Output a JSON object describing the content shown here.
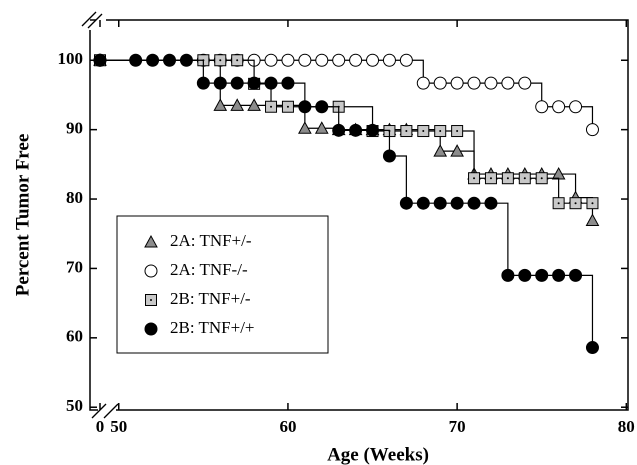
{
  "chart_data": {
    "type": "step",
    "xlabel": "Age (Weeks)",
    "ylabel": "Percent Tumor Free",
    "xlim": [
      48.3,
      80.1
    ],
    "ylim": [
      49.6,
      105.8
    ],
    "xticks": [
      0,
      50,
      60,
      70,
      80
    ],
    "yticks": [
      50,
      60,
      70,
      80,
      90,
      100
    ],
    "x_break": true,
    "y_break": true,
    "legend": "lower left",
    "series": [
      {
        "name": "2A: TNF+/-",
        "marker": "triangle",
        "color": "#8c8c8c",
        "x": [
          0,
          56,
          57,
          58,
          61,
          62,
          63,
          64,
          65,
          66,
          67,
          69,
          70,
          71,
          72,
          73,
          74,
          75,
          76,
          77,
          78
        ],
        "values": [
          100,
          93.5,
          93.5,
          93.5,
          90.2,
          90.2,
          90,
          90,
          90,
          90,
          90,
          86.9,
          86.9,
          83.6,
          83.6,
          83.6,
          83.6,
          83.6,
          83.6,
          80.2,
          76.9
        ]
      },
      {
        "name": "2A: TNF-/-",
        "marker": "circle",
        "color": "#ffffff",
        "x": [
          0,
          55,
          56,
          57,
          58,
          59,
          60,
          61,
          62,
          63,
          64,
          65,
          66,
          67,
          68,
          69,
          70,
          71,
          72,
          73,
          74,
          75,
          76,
          77,
          78
        ],
        "values": [
          100,
          100,
          100,
          100,
          100,
          100,
          100,
          100,
          100,
          100,
          100,
          100,
          100,
          100,
          96.7,
          96.7,
          96.7,
          96.7,
          96.7,
          96.7,
          96.7,
          93.3,
          93.3,
          93.3,
          90
        ]
      },
      {
        "name": "2B: TNF+/-",
        "marker": "square",
        "color": "#c8c8c8",
        "x": [
          0,
          55,
          56,
          57,
          58,
          59,
          60,
          63,
          65,
          66,
          67,
          68,
          69,
          70,
          71,
          72,
          73,
          74,
          75,
          76,
          77,
          78
        ],
        "values": [
          100,
          100,
          100,
          100,
          96.6,
          93.3,
          93.3,
          93.3,
          89.8,
          89.8,
          89.8,
          89.8,
          89.8,
          89.8,
          83,
          83,
          83,
          83,
          83,
          79.4,
          79.4,
          79.4
        ]
      },
      {
        "name": "2B: TNF+/+",
        "marker": "circle",
        "color": "#000000",
        "x": [
          0,
          51,
          52,
          53,
          54,
          55,
          56,
          57,
          58,
          59,
          60,
          61,
          62,
          63,
          64,
          65,
          66,
          67,
          68,
          69,
          70,
          71,
          72,
          73,
          74,
          75,
          76,
          77,
          78
        ],
        "values": [
          100,
          100,
          100,
          100,
          100,
          96.7,
          96.7,
          96.7,
          96.7,
          96.7,
          96.7,
          93.3,
          93.3,
          89.9,
          89.9,
          89.9,
          86.2,
          79.4,
          79.4,
          79.4,
          79.4,
          79.4,
          79.4,
          69,
          69,
          69,
          69,
          69,
          58.6
        ]
      }
    ]
  }
}
